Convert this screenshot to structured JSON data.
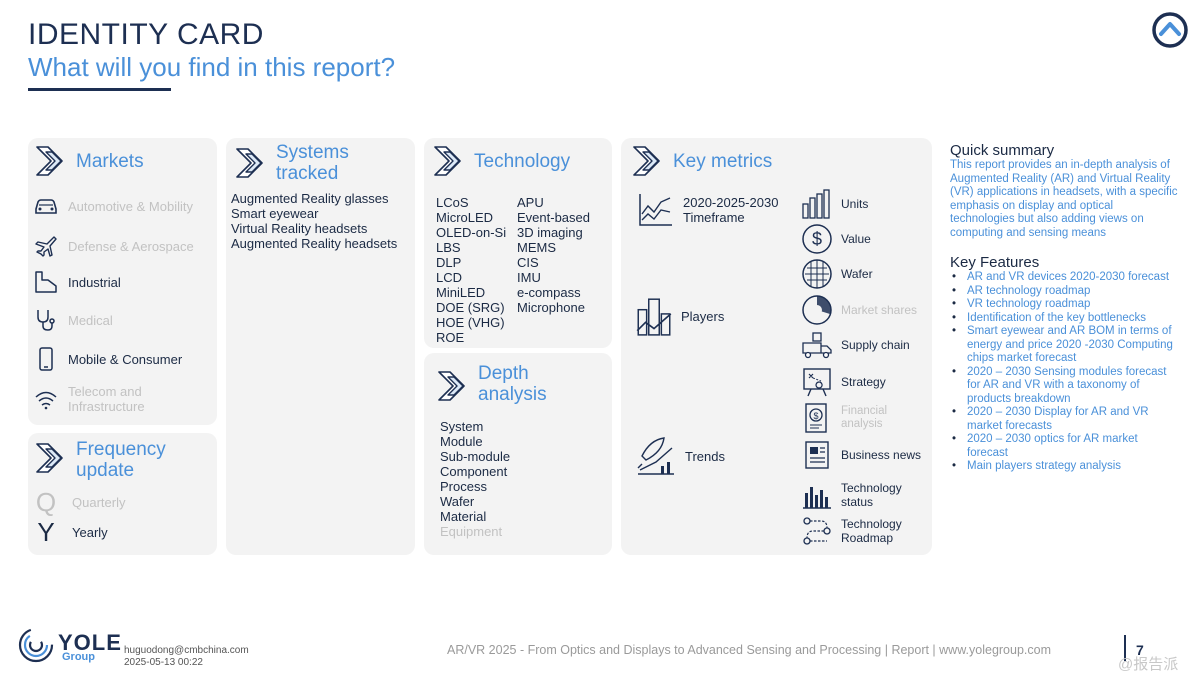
{
  "header": {
    "title": "IDENTITY CARD",
    "subtitle": "What will you find in this report?"
  },
  "markets": {
    "heading": "Markets",
    "items": [
      {
        "label": "Automotive & Mobility",
        "icon": "car-icon",
        "active": false
      },
      {
        "label": "Defense & Aerospace",
        "icon": "plane-icon",
        "active": false
      },
      {
        "label": "Industrial",
        "icon": "factory-icon",
        "active": true
      },
      {
        "label": "Medical",
        "icon": "stethoscope-icon",
        "active": false
      },
      {
        "label": "Mobile & Consumer",
        "icon": "phone-icon",
        "active": true
      },
      {
        "label": "Telecom and Infrastructure",
        "icon": "wifi-icon",
        "active": false
      }
    ]
  },
  "frequency": {
    "heading": "Frequency update",
    "items": [
      {
        "letter": "Q",
        "label": "Quarterly",
        "active": false
      },
      {
        "letter": "Y",
        "label": "Yearly",
        "active": true
      }
    ]
  },
  "systems": {
    "heading": "Systems tracked",
    "items": [
      "Augmented Reality glasses",
      "Smart eyewear",
      "Virtual Reality headsets",
      "Augmented Reality headsets"
    ]
  },
  "technology": {
    "heading": "Technology",
    "col1": [
      "LCoS",
      "MicroLED",
      "OLED-on-Si",
      "LBS",
      "DLP",
      "LCD",
      "MiniLED",
      "DOE (SRG)",
      "HOE (VHG)",
      "ROE"
    ],
    "col2": [
      "APU",
      "Event-based",
      "3D imaging",
      "MEMS",
      "CIS",
      "IMU",
      "e-compass",
      "Microphone"
    ]
  },
  "depth": {
    "heading": "Depth analysis",
    "items": [
      {
        "label": "System",
        "active": true
      },
      {
        "label": "Module",
        "active": true
      },
      {
        "label": "Sub-module",
        "active": true
      },
      {
        "label": "Component",
        "active": true
      },
      {
        "label": "Process",
        "active": true
      },
      {
        "label": "Wafer",
        "active": true
      },
      {
        "label": "Material",
        "active": true
      },
      {
        "label": "Equipment",
        "active": false
      }
    ]
  },
  "key_metrics": {
    "heading": "Key metrics",
    "left": [
      {
        "label": "2020-2025-2030 Timeframe",
        "icon": "line-chart-icon"
      },
      {
        "label": "Players",
        "icon": "buildings-chart-icon"
      },
      {
        "label": "Trends",
        "icon": "rocket-chart-icon"
      }
    ],
    "right": [
      {
        "label": "Units",
        "icon": "bar-chart-icon",
        "active": true
      },
      {
        "label": "Value",
        "icon": "dollar-icon",
        "active": true
      },
      {
        "label": "Wafer",
        "icon": "wafer-icon",
        "active": true
      },
      {
        "label": "Market shares",
        "icon": "pie-chart-icon",
        "active": false
      },
      {
        "label": "Supply chain",
        "icon": "truck-icon",
        "active": true
      },
      {
        "label": "Strategy",
        "icon": "board-icon",
        "active": true
      },
      {
        "label": "Financial analysis",
        "icon": "finance-doc-icon",
        "active": false
      },
      {
        "label": "Business news",
        "icon": "newspaper-icon",
        "active": true
      },
      {
        "label": "Technology status",
        "icon": "status-bars-icon",
        "active": true
      },
      {
        "label": "Technology Roadmap",
        "icon": "roadmap-icon",
        "active": true
      }
    ]
  },
  "summary": {
    "heading": "Quick summary",
    "text": "This report provides an in-depth analysis of Augmented Reality (AR) and Virtual Reality (VR) applications in headsets, with a specific emphasis on display and optical technologies but also adding views on computing and sensing means"
  },
  "features": {
    "heading": "Key Features",
    "items": [
      "AR and VR devices 2020-2030 forecast",
      "AR technology roadmap",
      "VR technology roadmap",
      "Identification of the key bottlenecks",
      "Smart eyewear and AR BOM in terms of energy and price 2020 -2030  Computing chips market forecast",
      "2020 – 2030 Sensing modules forecast for AR and VR with a taxonomy of products breakdown",
      "2020 – 2030 Display for AR and VR market forecasts",
      "2020 – 2030 optics for AR market forecast",
      "Main players strategy analysis"
    ]
  },
  "footer": {
    "brand": "YOLE",
    "brand_sub": "Group",
    "email": "huguodong@cmbchina.com",
    "date": "2025-05-13 00:22",
    "report": "AR/VR 2025 - From Optics and Displays to Advanced Sensing and Processing | Report | www.yolegroup.com",
    "page": "7",
    "watermark": "@报告派"
  },
  "colors": {
    "accent": "#4a90d9",
    "navy": "#1d2f52",
    "panel": "#f3f3f3",
    "inactive": "#c2c2c2"
  }
}
